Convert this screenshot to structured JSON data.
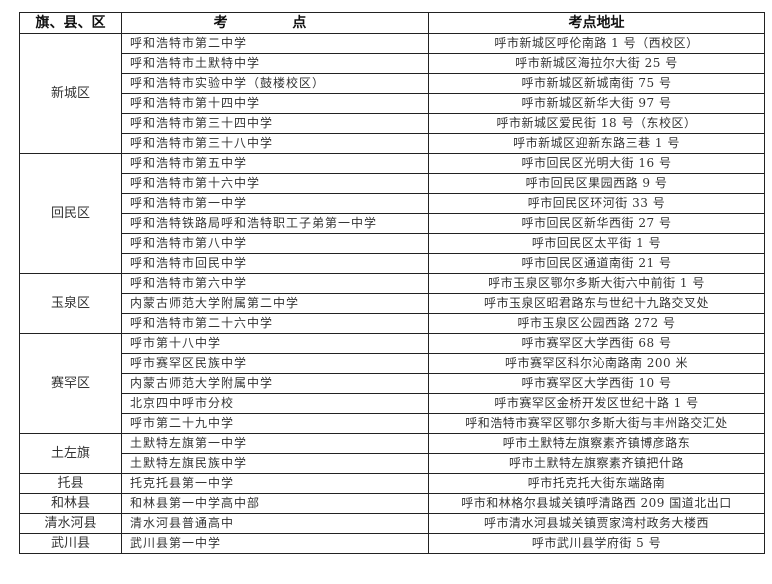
{
  "header": {
    "district": "旗、县、区",
    "site": "考 点",
    "address": "考点地址"
  },
  "groups": [
    {
      "district": "新城区",
      "rows": [
        {
          "school": "呼和浩特市第二中学",
          "address": "呼市新城区呼伦南路 1 号（西校区）"
        },
        {
          "school": "呼和浩特市土默特中学",
          "address": "呼市新城区海拉尔大街 25 号"
        },
        {
          "school": "呼和浩特市实验中学（鼓楼校区）",
          "address": "呼市新城区新城南街 75 号"
        },
        {
          "school": "呼和浩特市第十四中学",
          "address": "呼市新城区新华大街 97 号"
        },
        {
          "school": "呼和浩特市第三十四中学",
          "address": "呼市新城区爱民街 18 号（东校区）"
        },
        {
          "school": "呼和浩特市第三十八中学",
          "address": "呼市新城区迎新东路三巷 1 号"
        }
      ]
    },
    {
      "district": "回民区",
      "rows": [
        {
          "school": "呼和浩特市第五中学",
          "address": "呼市回民区光明大街 16 号"
        },
        {
          "school": "呼和浩特市第十六中学",
          "address": "呼市回民区果园西路 9 号"
        },
        {
          "school": "呼和浩特市第一中学",
          "address": "呼市回民区环河街 33 号"
        },
        {
          "school": "呼和浩特铁路局呼和浩特职工子弟第一中学",
          "address": "呼市回民区新华西街 27 号"
        },
        {
          "school": "呼和浩特市第八中学",
          "address": "呼市回民区太平街 1 号"
        },
        {
          "school": "呼和浩特市回民中学",
          "address": "呼市回民区通道南街 21 号"
        }
      ]
    },
    {
      "district": "玉泉区",
      "rows": [
        {
          "school": "呼和浩特市第六中学",
          "address": "呼市玉泉区鄂尔多斯大街六中前街 1 号"
        },
        {
          "school": "内蒙古师范大学附属第二中学",
          "address": "呼市玉泉区昭君路东与世纪十九路交叉处"
        },
        {
          "school": "呼和浩特市第二十六中学",
          "address": "呼市玉泉区公园西路 272 号"
        }
      ]
    },
    {
      "district": "赛罕区",
      "rows": [
        {
          "school": "呼市第十八中学",
          "address": "呼市赛罕区大学西街 68 号"
        },
        {
          "school": "呼市赛罕区民族中学",
          "address": "呼市赛罕区科尔沁南路南 200 米"
        },
        {
          "school": "内蒙古师范大学附属中学",
          "address": "呼市赛罕区大学西街 10 号"
        },
        {
          "school": "北京四中呼市分校",
          "address": "呼市赛罕区金桥开发区世纪十路 1 号"
        },
        {
          "school": "呼市第二十九中学",
          "address": "呼和浩特市赛罕区鄂尔多斯大街与丰州路交汇处"
        }
      ]
    },
    {
      "district": "土左旗",
      "rows": [
        {
          "school": "土默特左旗第一中学",
          "address": "呼市土默特左旗察素齐镇博彦路东"
        },
        {
          "school": "土默特左旗民族中学",
          "address": "呼市土默特左旗察素齐镇把什路"
        }
      ]
    },
    {
      "district": "托县",
      "rows": [
        {
          "school": "托克托县第一中学",
          "address": "呼市托克托大街东端路南"
        }
      ]
    },
    {
      "district": "和林县",
      "rows": [
        {
          "school": "和林县第一中学高中部",
          "address": "呼市和林格尔县城关镇呼清路西 209 国道北出口"
        }
      ]
    },
    {
      "district": "清水河县",
      "rows": [
        {
          "school": "清水河县普通高中",
          "address": "呼市清水河县城关镇贾家湾村政务大楼西"
        }
      ]
    },
    {
      "district": "武川县",
      "rows": [
        {
          "school": "武川县第一中学",
          "address": "呼市武川县学府街 5 号"
        }
      ]
    }
  ]
}
